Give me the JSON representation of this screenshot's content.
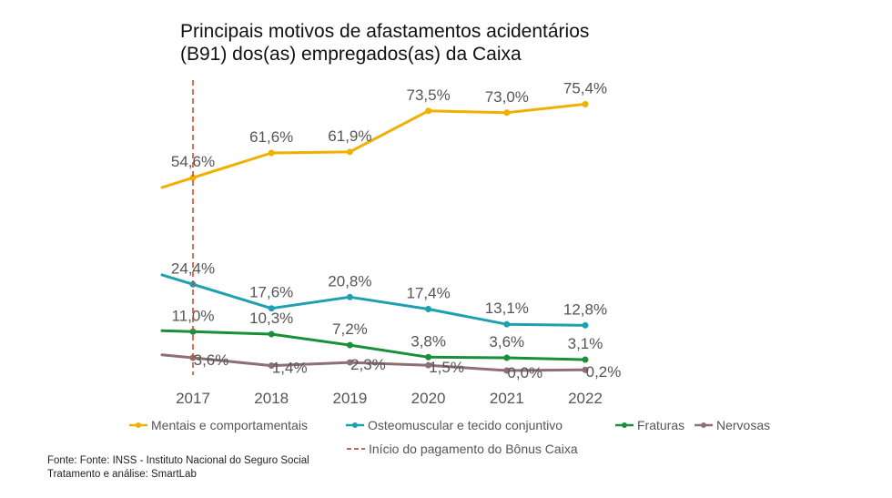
{
  "title_lines": [
    "Principais motivos de afastamentos acidentários",
    "(B91) dos(as) empregados(as) da Caixa"
  ],
  "source_lines": [
    "Fonte: Fonte: INSS - Instituto Nacional do Seguro Social",
    "Tratamento e análise: SmartLab"
  ],
  "colors": {
    "mentais": "#f0b000",
    "osteomuscular": "#1ea0b0",
    "fraturas": "#1a8f3a",
    "nervosas": "#8f6e74",
    "marker": "#c8502a"
  },
  "chart_data": {
    "type": "line",
    "title": "Principais motivos de afastamentos acidentários (B91) dos(as) empregados(as) da Caixa",
    "x": [
      "2017",
      "2018",
      "2019",
      "2020",
      "2021",
      "2022"
    ],
    "xlabel": "",
    "ylabel": "",
    "ylim": [
      0,
      80
    ],
    "grid": false,
    "legend_position": "bottom",
    "series": [
      {
        "key": "mentais",
        "name": "Mentais e comportamentais",
        "values": [
          54.6,
          61.6,
          61.9,
          73.5,
          73.0,
          75.4
        ],
        "labels": [
          "54,6%",
          "61,6%",
          "61,9%",
          "73,5%",
          "73,0%",
          "75,4%"
        ]
      },
      {
        "key": "osteomuscular",
        "name": "Osteomuscular e tecido conjuntivo",
        "values": [
          24.4,
          17.6,
          20.8,
          17.4,
          13.1,
          12.8
        ],
        "labels": [
          "24,4%",
          "17,6%",
          "20,8%",
          "17,4%",
          "13,1%",
          "12,8%"
        ]
      },
      {
        "key": "fraturas",
        "name": "Fraturas",
        "values": [
          11.0,
          10.3,
          7.2,
          3.8,
          3.6,
          3.1
        ],
        "labels": [
          "11,0%",
          "10,3%",
          "7,2%",
          "3,8%",
          "3,6%",
          "3,1%"
        ]
      },
      {
        "key": "nervosas",
        "name": "Nervosas",
        "values": [
          3.6,
          1.4,
          2.3,
          1.5,
          0.0,
          0.2
        ],
        "labels": [
          "3,6%",
          "1,4%",
          "2,3%",
          "1,5%",
          "0,0%",
          "0,2%"
        ]
      }
    ],
    "annotation": {
      "label": "Início do pagamento do Bônus Caixa",
      "x": "2017",
      "style": "dashed"
    }
  }
}
